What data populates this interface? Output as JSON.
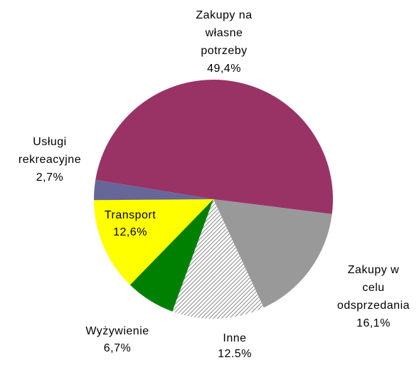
{
  "chart_data": {
    "type": "pie",
    "categories": [
      [
        "Zakupy na",
        "własne",
        "potrzeby"
      ],
      [
        "Zakupy w",
        "celu",
        "odsprzedania"
      ],
      [
        "Inne"
      ],
      [
        "Wyżywienie"
      ],
      [
        "Transport"
      ],
      [
        "Usługi",
        "rekreacyjne"
      ]
    ],
    "values": [
      49.4,
      16.1,
      12.5,
      6.7,
      12.6,
      2.7
    ],
    "value_labels": [
      "49,4%",
      "16,1%",
      "12.5%",
      "6,7%",
      "12,6%",
      "2,7%"
    ],
    "colors": [
      "#993366",
      "#999999",
      "#ffffff",
      "#008000",
      "#ffff00",
      "#666699"
    ],
    "hatched": [
      false,
      false,
      true,
      false,
      false,
      false
    ]
  }
}
